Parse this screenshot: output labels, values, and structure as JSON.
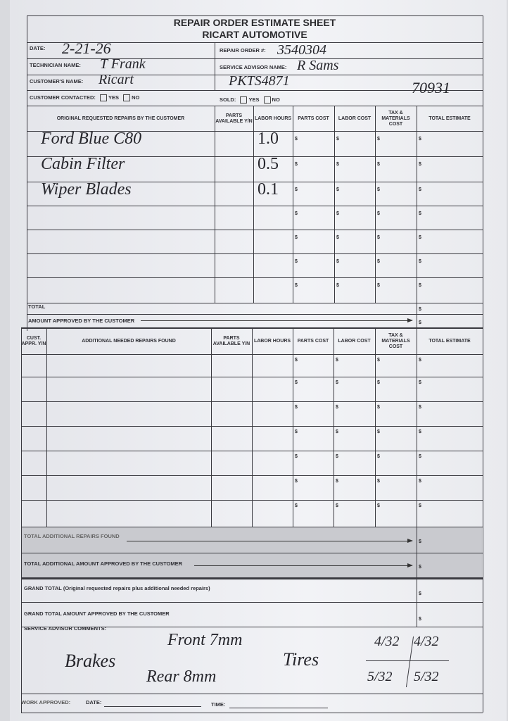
{
  "form": {
    "title": "REPAIR ORDER ESTIMATE SHEET",
    "subtitle": "RICART AUTOMOTIVE",
    "date_label": "DATE:",
    "date_value": "2-21-26",
    "repair_order_label": "REPAIR ORDER #:",
    "repair_order_value": "3540304",
    "technician_label": "TECHNICIAN NAME:",
    "technician_value": "T Frank",
    "advisor_label": "SERVICE ADVISOR NAME:",
    "advisor_value": "R Sams",
    "customer_label": "CUSTOMER'S NAME:",
    "customer_value": "Ricart",
    "vehicle_value": "PKTS4871",
    "mileage_value": "70931",
    "contacted_label": "CUSTOMER CONTACTED:",
    "sold_label": "SOLD:",
    "yes_label": "YES",
    "no_label": "NO"
  },
  "original_table": {
    "headers": [
      "ORIGINAL REQUESTED REPAIRS BY THE CUSTOMER",
      "PARTS AVAILABLE Y/N",
      "LABOR HOURS",
      "PARTS COST",
      "LABOR COST",
      "TAX & MATERIALS COST",
      "TOTAL ESTIMATE"
    ],
    "rows": [
      {
        "repair": "Ford Blue C80",
        "hours": "1.0"
      },
      {
        "repair": "Cabin Filter",
        "hours": "0.5"
      },
      {
        "repair": "Wiper Blades",
        "hours": "0.1"
      },
      {
        "repair": "",
        "hours": ""
      },
      {
        "repair": "",
        "hours": ""
      },
      {
        "repair": "",
        "hours": ""
      },
      {
        "repair": "",
        "hours": ""
      }
    ],
    "total_label": "TOTAL",
    "approved_label": "AMOUNT APPROVED BY THE CUSTOMER",
    "currency": "$"
  },
  "additional_table": {
    "headers": [
      "CUST. APPR. Y/N",
      "ADDITIONAL NEEDED REPAIRS FOUND",
      "PARTS AVAILABLE Y/N",
      "LABOR HOURS",
      "PARTS COST",
      "LABOR COST",
      "TAX & MATERIALS COST",
      "TOTAL ESTIMATE"
    ],
    "row_count": 7
  },
  "totals": {
    "additional_repairs": "TOTAL ADDITIONAL REPAIRS FOUND",
    "additional_approved": "TOTAL ADDITIONAL AMOUNT APPROVED BY THE CUSTOMER",
    "grand_total": "GRAND TOTAL (Original requested repairs plus additional needed repairs)",
    "grand_approved": "GRAND TOTAL AMOUNT APPROVED BY THE CUSTOMER"
  },
  "comments": {
    "label": "SERVICE ADVISOR COMMENTS:",
    "brakes": "Brakes",
    "front": "Front 7mm",
    "rear": "Rear 8mm",
    "tires": "Tires",
    "tire_fl": "4/32",
    "tire_fr": "4/32",
    "tire_rl": "5/32",
    "tire_rr": "5/32"
  },
  "footer": {
    "work_approved": "WORK APPROVED:",
    "date": "DATE:",
    "time": "TIME:"
  }
}
